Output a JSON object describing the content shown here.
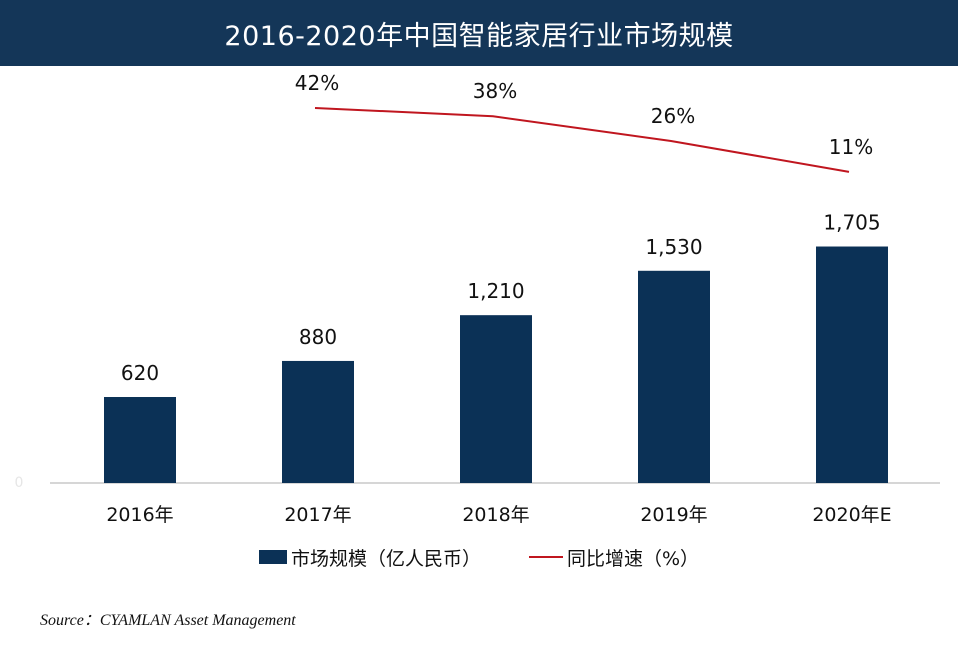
{
  "title": "2016-2020年中国智能家居行业市场规模",
  "legend": {
    "bar_label": "市场规模（亿人民币）",
    "line_label": "同比增速（%）"
  },
  "source": "Source：CYAMLAN Asset Management",
  "colors": {
    "header": "#143658",
    "bar": "#0b3156",
    "line": "#c0161f"
  },
  "chart_data": {
    "type": "bar",
    "categories": [
      "2016年",
      "2017年",
      "2018年",
      "2019年",
      "2020年E"
    ],
    "series": [
      {
        "name": "市场规模（亿人民币）",
        "type": "bar",
        "values": [
          620,
          880,
          1210,
          1530,
          1705
        ],
        "labels": [
          "620",
          "880",
          "1,210",
          "1,530",
          "1,705"
        ]
      },
      {
        "name": "同比增速（%）",
        "type": "line",
        "values": [
          null,
          42,
          38,
          26,
          11
        ],
        "labels": [
          "",
          "42%",
          "38%",
          "26%",
          "11%"
        ]
      }
    ],
    "y_axis_tick_labels": [
      "0"
    ],
    "legend_position": "bottom",
    "grid": false
  }
}
